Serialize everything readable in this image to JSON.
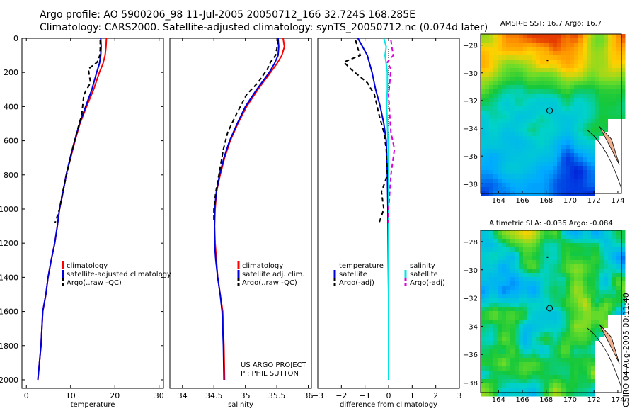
{
  "header": {
    "line1": "Argo profile: AO 5900206_98 11-Jul-2005 20050712_166 32.724S 168.285E",
    "line2": "Climatology: CARS2000. Satellite-adjusted climatology: synTS_20050712.nc (0.074d later)"
  },
  "stamp": "CSIRO 04-Aug-2005 00:11:40",
  "colors": {
    "clim": "#ff0000",
    "sat": "#0000dd",
    "argo": "#000000",
    "cyan": "#00e5e5",
    "magenta": "#dd00dd"
  },
  "chart_data": [
    {
      "type": "line",
      "id": "temperature",
      "xlabel": "temperature",
      "ylabel": "",
      "xlim": [
        -1,
        31
      ],
      "ylim": [
        2050,
        0
      ],
      "xticks": [
        0,
        10,
        20,
        30
      ],
      "yticks": [
        0,
        200,
        400,
        600,
        800,
        1000,
        1200,
        1400,
        1600,
        1800,
        2000
      ],
      "legend": [
        "climatology",
        "satellite-adjusted climatology",
        "Argo(..raw -QC)"
      ],
      "series": [
        {
          "name": "climatology",
          "color": "clim",
          "dash": false,
          "x": [
            18.1,
            18.0,
            17.8,
            17.3,
            16.5,
            15.2,
            13.6,
            12.1,
            11.0,
            10.0,
            9.0,
            8.3,
            7.5,
            7.0,
            6.4,
            5.6,
            4.9,
            4.4,
            3.7,
            3.3,
            2.6
          ],
          "y": [
            0,
            50,
            100,
            150,
            200,
            300,
            400,
            500,
            600,
            700,
            800,
            900,
            1000,
            1100,
            1200,
            1300,
            1400,
            1500,
            1600,
            1800,
            2000
          ]
        },
        {
          "name": "satellite",
          "color": "sat",
          "dash": false,
          "x": [
            16.8,
            16.9,
            16.8,
            16.5,
            15.9,
            14.8,
            13.4,
            12.0,
            10.9,
            9.9,
            9.0,
            8.3,
            7.5,
            7.0,
            6.4,
            5.6,
            4.9,
            4.4,
            3.7,
            3.3,
            2.6
          ],
          "y": [
            0,
            50,
            100,
            150,
            200,
            300,
            400,
            500,
            600,
            700,
            800,
            900,
            1000,
            1100,
            1200,
            1300,
            1400,
            1500,
            1600,
            1800,
            2000
          ]
        },
        {
          "name": "argo",
          "color": "argo",
          "dash": true,
          "x": [
            16.7,
            16.7,
            16.6,
            16.0,
            14.0,
            14.5,
            13.0,
            12.5,
            11.4,
            10.4,
            9.1,
            8.2,
            7.5,
            6.5
          ],
          "y": [
            10,
            60,
            100,
            140,
            180,
            260,
            330,
            450,
            550,
            650,
            800,
            900,
            1000,
            1080
          ]
        }
      ]
    },
    {
      "type": "line",
      "id": "salinity",
      "xlabel": "salinity",
      "ylabel": "",
      "xlim": [
        33.8,
        36.05
      ],
      "ylim": [
        2050,
        0
      ],
      "xticks": [
        34,
        34.5,
        35,
        35.5,
        36
      ],
      "yticks": [],
      "legend": [
        "climatology",
        "satellite adj. clim.",
        "Argo(..raw -QC)"
      ],
      "annotation": [
        "US ARGO PROJECT",
        "PI: PHIL SUTTON"
      ],
      "series": [
        {
          "name": "climatology",
          "color": "clim",
          "dash": false,
          "x": [
            35.6,
            35.62,
            35.58,
            35.5,
            35.4,
            35.2,
            35.02,
            34.88,
            34.76,
            34.67,
            34.6,
            34.54,
            34.52,
            34.51,
            34.52,
            34.54,
            34.56,
            34.6,
            34.64,
            34.66,
            34.67
          ],
          "y": [
            0,
            50,
            100,
            150,
            200,
            300,
            400,
            500,
            600,
            700,
            800,
            900,
            1000,
            1100,
            1200,
            1300,
            1400,
            1500,
            1600,
            1800,
            2000
          ]
        },
        {
          "name": "satellite",
          "color": "sat",
          "dash": false,
          "x": [
            35.52,
            35.53,
            35.52,
            35.46,
            35.38,
            35.18,
            35.0,
            34.87,
            34.75,
            34.66,
            34.59,
            34.54,
            34.51,
            34.51,
            34.51,
            34.53,
            34.56,
            34.6,
            34.63,
            34.65,
            34.66
          ],
          "y": [
            0,
            50,
            100,
            150,
            200,
            300,
            400,
            500,
            600,
            700,
            800,
            900,
            1000,
            1100,
            1200,
            1300,
            1400,
            1500,
            1600,
            1800,
            2000
          ]
        },
        {
          "name": "argo",
          "color": "argo",
          "dash": true,
          "x": [
            35.52,
            35.5,
            35.48,
            35.4,
            35.35,
            35.2,
            35.02,
            34.85,
            34.72,
            34.65,
            34.58,
            34.53,
            34.5,
            34.5
          ],
          "y": [
            10,
            60,
            100,
            140,
            180,
            260,
            330,
            450,
            550,
            650,
            800,
            900,
            1000,
            1080
          ]
        }
      ]
    },
    {
      "type": "line",
      "id": "difference",
      "xlabel": "difference from climatology",
      "ylabel": "",
      "xlim": [
        -3,
        3
      ],
      "ylim": [
        2050,
        0
      ],
      "xticks": [
        -3,
        -2,
        -1,
        0,
        1,
        2,
        3
      ],
      "yticks": [],
      "legend_left": [
        "temperature",
        "satellite",
        "Argo(-adj)"
      ],
      "legend_right": [
        "salinity",
        "satellite",
        "Argo(-adj)"
      ],
      "series": [
        {
          "name": "temp-sat",
          "color": "sat",
          "dash": false,
          "x": [
            -1.3,
            -1.1,
            -0.9,
            -0.8,
            -0.7,
            -0.55,
            -0.35,
            -0.2,
            -0.1,
            -0.05,
            -0.03,
            0,
            0
          ],
          "y": [
            0,
            50,
            100,
            150,
            200,
            300,
            400,
            500,
            600,
            800,
            1000,
            1500,
            2000
          ]
        },
        {
          "name": "temp-argo",
          "color": "argo",
          "dash": true,
          "x": [
            -1.4,
            -1.3,
            -1.2,
            -1.9,
            -1.6,
            -0.9,
            -0.6,
            -0.4,
            -0.2,
            -0.1,
            -0.05,
            -0.3,
            -0.2,
            -0.4
          ],
          "y": [
            10,
            60,
            100,
            140,
            180,
            260,
            330,
            450,
            550,
            650,
            800,
            900,
            1000,
            1080
          ]
        },
        {
          "name": "sal-sat",
          "color": "cyan",
          "dash": false,
          "x": [
            -0.2,
            -0.1,
            -0.15,
            -0.1,
            -0.05,
            -0.05,
            -0.08,
            -0.05,
            0,
            0,
            0,
            0
          ],
          "y": [
            0,
            50,
            100,
            150,
            200,
            300,
            400,
            500,
            700,
            1000,
            1500,
            2000
          ]
        },
        {
          "name": "sal-argo",
          "color": "magenta",
          "dash": true,
          "x": [
            0.1,
            0.15,
            0.2,
            -0.05,
            0.1,
            0.05,
            0.0,
            0.05,
            0.1,
            0.25,
            0.1,
            0.05,
            0,
            0
          ],
          "y": [
            10,
            60,
            100,
            140,
            180,
            260,
            330,
            450,
            550,
            650,
            800,
            900,
            1000,
            1080
          ]
        }
      ]
    },
    {
      "type": "heatmap",
      "id": "sst-map",
      "title": "AMSR-E SST: 16.7 Argo: 16.7",
      "xlim": [
        162.5,
        174.3
      ],
      "ylim": [
        -38.7,
        -27.2
      ],
      "xticks": [
        164,
        166,
        168,
        170,
        172,
        174
      ],
      "yticks": [
        -28,
        -30,
        -32,
        -34,
        -36,
        -38
      ],
      "float": {
        "lon": 168.285,
        "lat": -32.724
      }
    },
    {
      "type": "heatmap",
      "id": "sla-map",
      "title": "Altimetric SLA: -0.036 Argo: -0.084",
      "xlim": [
        162.5,
        174.3
      ],
      "ylim": [
        -38.7,
        -27.2
      ],
      "xticks": [
        164,
        166,
        168,
        170,
        172,
        174
      ],
      "yticks": [
        -28,
        -30,
        -32,
        -34,
        -36,
        -38
      ],
      "float": {
        "lon": 168.285,
        "lat": -32.724
      }
    }
  ]
}
